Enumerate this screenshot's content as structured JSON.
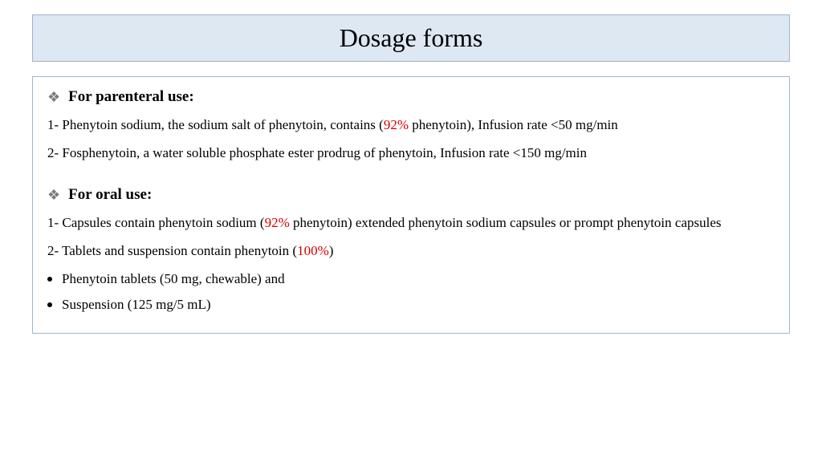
{
  "title": "Dosage forms",
  "colors": {
    "title_bg": "#dde8f3",
    "border": "#9db5ce",
    "highlight": "#d40000",
    "icon": "#7a7a7a",
    "text": "#000000",
    "page_bg": "#ffffff"
  },
  "typography": {
    "title_fontsize": 32,
    "section_fontsize": 19,
    "body_fontsize": 17,
    "font_family": "Georgia, serif"
  },
  "sections": [
    {
      "heading": "For parenteral use:",
      "items": [
        {
          "pre": "1- Phenytoin sodium, the sodium salt of phenytoin, contains (",
          "hl": "92%",
          "post": " phenytoin), Infusion rate <50 mg/min"
        },
        {
          "pre": "2- Fosphenytoin, a water soluble phosphate ester prodrug of phenytoin, Infusion rate <150 mg/min",
          "hl": "",
          "post": ""
        }
      ]
    },
    {
      "heading": "For oral use:",
      "items": [
        {
          "pre": "1- Capsules contain phenytoin sodium (",
          "hl": "92%",
          "post": " phenytoin) extended phenytoin sodium capsules or prompt phenytoin capsules"
        },
        {
          "pre": "2- Tablets and suspension contain phenytoin (",
          "hl": "100%",
          "post": ")"
        }
      ],
      "bullets": [
        "Phenytoin tablets (50 mg, chewable) and",
        "Suspension (125 mg/5 mL)"
      ]
    }
  ]
}
